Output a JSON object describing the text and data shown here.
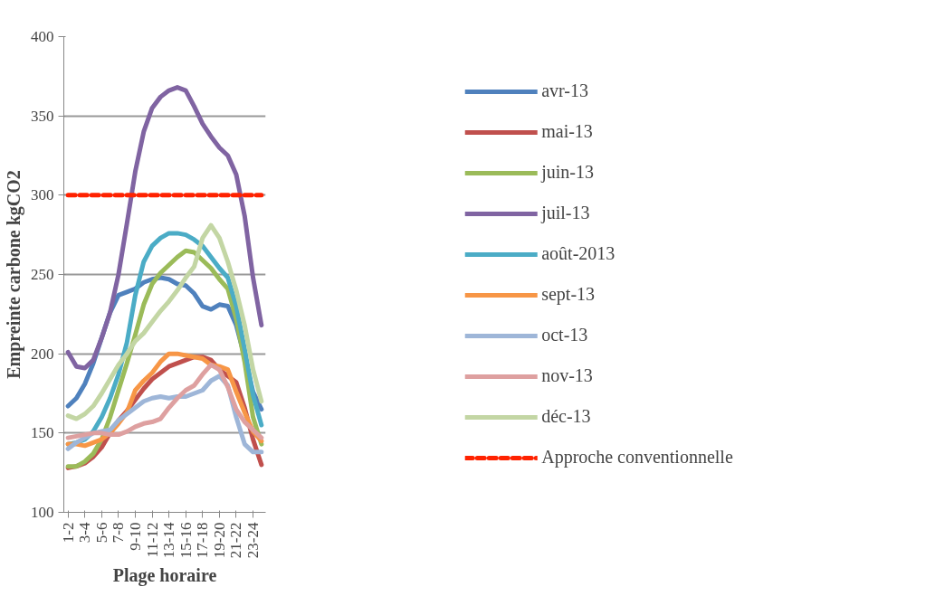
{
  "chart_data": {
    "type": "line",
    "xlabel": "Plage horaire",
    "ylabel": "Empreinte carbone kgCO2",
    "categories": [
      "1-2",
      null,
      "3-4",
      null,
      "5-6",
      null,
      "7-8",
      null,
      "9-10",
      null,
      "11-12",
      null,
      "13-14",
      null,
      "15-16",
      null,
      "17-18",
      null,
      "19-20",
      null,
      "21-22",
      null,
      "23-24",
      null
    ],
    "series": [
      {
        "name": "avr-13",
        "color": "#4f81bd",
        "values": [
          167,
          172,
          181,
          194,
          210,
          226,
          237,
          239,
          241,
          245,
          247,
          248,
          247,
          244,
          243,
          238,
          230,
          228,
          231,
          230,
          218,
          198,
          176,
          165
        ]
      },
      {
        "name": "mai-13",
        "color": "#c0504d",
        "values": [
          128,
          129,
          131,
          135,
          141,
          150,
          158,
          164,
          171,
          178,
          184,
          188,
          192,
          194,
          196,
          198,
          198,
          196,
          190,
          186,
          182,
          166,
          146,
          130
        ]
      },
      {
        "name": "juin-13",
        "color": "#9bbb59",
        "values": [
          129,
          129,
          132,
          137,
          146,
          160,
          177,
          194,
          212,
          231,
          244,
          251,
          256,
          261,
          265,
          264,
          259,
          254,
          247,
          241,
          222,
          195,
          160,
          143
        ]
      },
      {
        "name": "juil-13",
        "color": "#8064a2",
        "values": [
          201,
          192,
          191,
          196,
          210,
          226,
          250,
          282,
          315,
          340,
          355,
          362,
          366,
          368,
          366,
          356,
          345,
          337,
          330,
          325,
          313,
          287,
          248,
          218
        ]
      },
      {
        "name": "août-2013",
        "color": "#4bacc6",
        "values": [
          143,
          144,
          146,
          151,
          160,
          172,
          187,
          207,
          237,
          258,
          268,
          273,
          276,
          276,
          275,
          272,
          268,
          261,
          254,
          248,
          230,
          203,
          174,
          155
        ]
      },
      {
        "name": "sept-13",
        "color": "#f79646",
        "values": [
          143,
          143,
          142,
          144,
          146,
          150,
          156,
          163,
          177,
          183,
          188,
          195,
          200,
          200,
          199,
          198,
          197,
          193,
          192,
          190,
          176,
          163,
          151,
          145
        ]
      },
      {
        "name": "oct-13",
        "color": "#9eb6d8",
        "values": [
          140,
          144,
          147,
          150,
          151,
          152,
          158,
          162,
          166,
          170,
          172,
          173,
          172,
          173,
          173,
          175,
          177,
          183,
          186,
          180,
          160,
          143,
          138,
          138
        ]
      },
      {
        "name": "nov-13",
        "color": "#dea0a0",
        "values": [
          147,
          148,
          149,
          150,
          150,
          149,
          149,
          151,
          154,
          156,
          157,
          159,
          166,
          172,
          177,
          180,
          187,
          193,
          190,
          179,
          165,
          157,
          152,
          147
        ]
      },
      {
        "name": "déc-13",
        "color": "#c3d6a4",
        "values": [
          161,
          159,
          162,
          167,
          175,
          184,
          193,
          200,
          208,
          213,
          220,
          227,
          233,
          240,
          248,
          255,
          273,
          281,
          273,
          258,
          240,
          218,
          190,
          170
        ]
      },
      {
        "name": "Approche conventionnelle",
        "color": "#ff2200",
        "line_style": "dashed",
        "values": [
          300,
          300,
          300,
          300,
          300,
          300,
          300,
          300,
          300,
          300,
          300,
          300,
          300,
          300,
          300,
          300,
          300,
          300,
          300,
          300,
          300,
          300,
          300,
          300
        ]
      }
    ],
    "ylim": [
      100,
      400
    ],
    "yticks": [
      100,
      150,
      200,
      250,
      300,
      350,
      400
    ],
    "grid": "y",
    "legend": "right",
    "marker": "none"
  }
}
